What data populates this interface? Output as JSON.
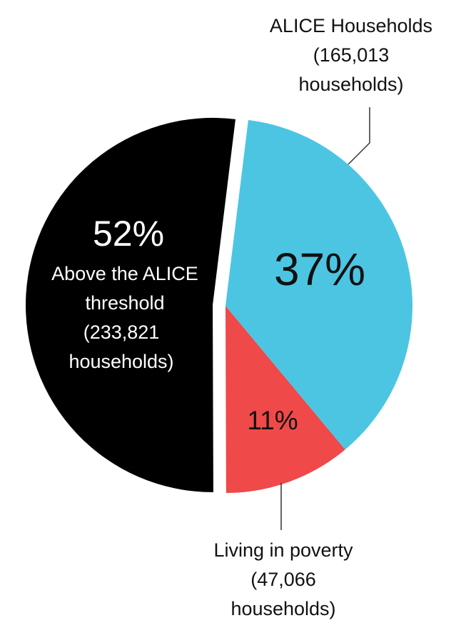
{
  "chart_data": {
    "type": "pie",
    "categories": [
      "ALICE Households",
      "Living in poverty",
      "Above the ALICE threshold"
    ],
    "values": [
      37,
      11,
      52
    ],
    "value_labels": [
      "37%",
      "11%",
      "52%"
    ],
    "notes": [
      "(165,013 households)",
      "(47,066 households)",
      "(233,821 households)"
    ],
    "colors": [
      "#4cc5e3",
      "#ef4949",
      "#000000"
    ],
    "start_angle": 7,
    "exploded": [
      false,
      false,
      true
    ]
  }
}
